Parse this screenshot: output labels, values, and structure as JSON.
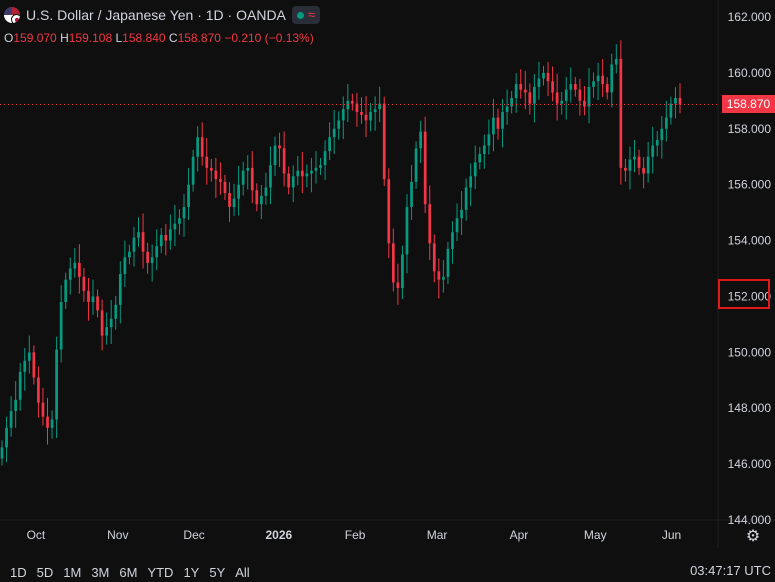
{
  "header": {
    "title": "U.S. Dollar / Japanese Yen · 1D · OANDA",
    "open_label": "O",
    "open_value": "159.070",
    "high_label": "H",
    "high_value": "159.108",
    "low_label": "L",
    "low_value": "158.840",
    "close_label": "C",
    "close_value": "158.870",
    "change": "−0.210 (−0.13%)"
  },
  "price_tag": "158.870",
  "icons": {
    "flag": "us-jp-flag-icon",
    "status": "market-open-dot-icon",
    "wave": "wave-icon",
    "settings": "gear-icon"
  },
  "time_ranges": [
    "1D",
    "5D",
    "1M",
    "3M",
    "6M",
    "YTD",
    "1Y",
    "5Y",
    "All"
  ],
  "clock": "03:47:17 UTC",
  "colors": {
    "up": "#089981",
    "down": "#f23645",
    "background": "#0f0f0f",
    "highlight": "#e01a1a"
  },
  "chart_data": {
    "type": "candlestick",
    "y_axis_ticks": [
      "162.000",
      "160.000",
      "158.000",
      "156.000",
      "154.000",
      "152.000",
      "150.000",
      "148.000",
      "146.000",
      "144.000"
    ],
    "x_axis_ticks": [
      "Oct",
      "Nov",
      "Dec",
      "2026",
      "Feb",
      "Mar",
      "Apr",
      "May",
      "Jun"
    ],
    "ylim": [
      144,
      162.6
    ],
    "last_price": 158.87,
    "grid": false,
    "highlighted_tick": "152.000",
    "closes": [
      146.6,
      147.3,
      147.9,
      148.3,
      149.3,
      149.7,
      150.0,
      149.1,
      148.2,
      147.7,
      147.3,
      147.6,
      150.1,
      151.8,
      152.6,
      153.0,
      153.2,
      152.7,
      152.2,
      151.8,
      152.0,
      151.5,
      150.6,
      150.9,
      151.2,
      151.7,
      152.8,
      153.4,
      153.6,
      154.1,
      154.3,
      153.6,
      153.2,
      153.4,
      153.8,
      154.2,
      154.0,
      154.4,
      154.6,
      154.8,
      155.2,
      156.0,
      157.0,
      157.7,
      157.0,
      156.6,
      156.5,
      156.2,
      156.1,
      155.7,
      155.2,
      155.5,
      156.0,
      156.5,
      156.6,
      155.8,
      155.3,
      155.6,
      155.9,
      156.7,
      157.4,
      157.3,
      156.4,
      155.9,
      156.3,
      156.5,
      156.3,
      156.4,
      156.5,
      156.6,
      156.7,
      157.2,
      157.7,
      158.0,
      158.3,
      158.7,
      159.0,
      158.9,
      158.6,
      158.5,
      158.3,
      158.6,
      158.7,
      158.9,
      156.2,
      153.9,
      152.5,
      152.3,
      153.5,
      155.2,
      156.1,
      157.3,
      157.9,
      155.3,
      153.9,
      152.9,
      152.6,
      152.7,
      153.7,
      154.3,
      154.8,
      155.1,
      155.9,
      156.3,
      156.8,
      157.1,
      157.4,
      157.8,
      158.4,
      158.0,
      158.6,
      158.8,
      159.1,
      159.6,
      159.4,
      159.3,
      158.9,
      159.5,
      159.8,
      160.0,
      159.7,
      159.3,
      158.9,
      159.0,
      159.4,
      159.6,
      159.4,
      159.0,
      158.8,
      159.5,
      159.7,
      159.9,
      159.6,
      159.3,
      160.3,
      160.5,
      156.6,
      156.5,
      156.9,
      157.0,
      156.6,
      156.4,
      157.0,
      157.4,
      157.6,
      158.0,
      158.4,
      158.9,
      159.1,
      158.87
    ]
  }
}
